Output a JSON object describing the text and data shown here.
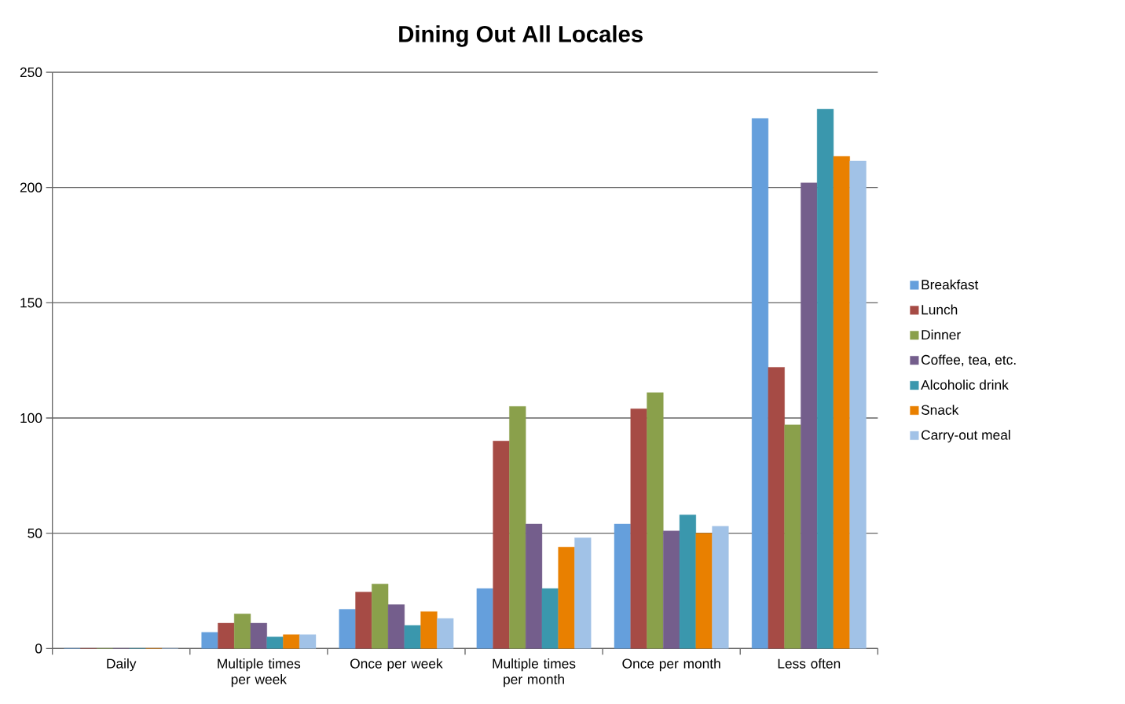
{
  "chart_data": {
    "type": "bar",
    "title": "Dining Out All Locales",
    "categories": [
      "Daily",
      "Multiple times per week",
      "Once per week",
      "Multiple times per month",
      "Once per month",
      "Less often"
    ],
    "series": [
      {
        "name": "Breakfast",
        "color": "#659fdc",
        "values": [
          0,
          7,
          17,
          26,
          54,
          230
        ]
      },
      {
        "name": "Lunch",
        "color": "#a64b45",
        "values": [
          0,
          11,
          24.5,
          90,
          104,
          122
        ]
      },
      {
        "name": "Dinner",
        "color": "#8aa04b",
        "values": [
          0,
          15,
          28,
          105,
          111,
          97
        ]
      },
      {
        "name": "Coffee, tea, etc.",
        "color": "#745e8c",
        "values": [
          0,
          11,
          19,
          54,
          51,
          202
        ]
      },
      {
        "name": "Alcoholic drink",
        "color": "#3a97ad",
        "values": [
          0,
          5,
          10,
          26,
          58,
          234
        ]
      },
      {
        "name": "Snack",
        "color": "#e98000",
        "values": [
          0,
          6,
          16,
          44,
          50,
          213.5
        ]
      },
      {
        "name": "Carry-out meal",
        "color": "#a1c2e7",
        "values": [
          0,
          6,
          13,
          48,
          53,
          211.5
        ]
      }
    ],
    "ylim": [
      0,
      250
    ],
    "yticks": [
      0,
      50,
      100,
      150,
      200,
      250
    ],
    "grid": "y",
    "legend": "right"
  }
}
